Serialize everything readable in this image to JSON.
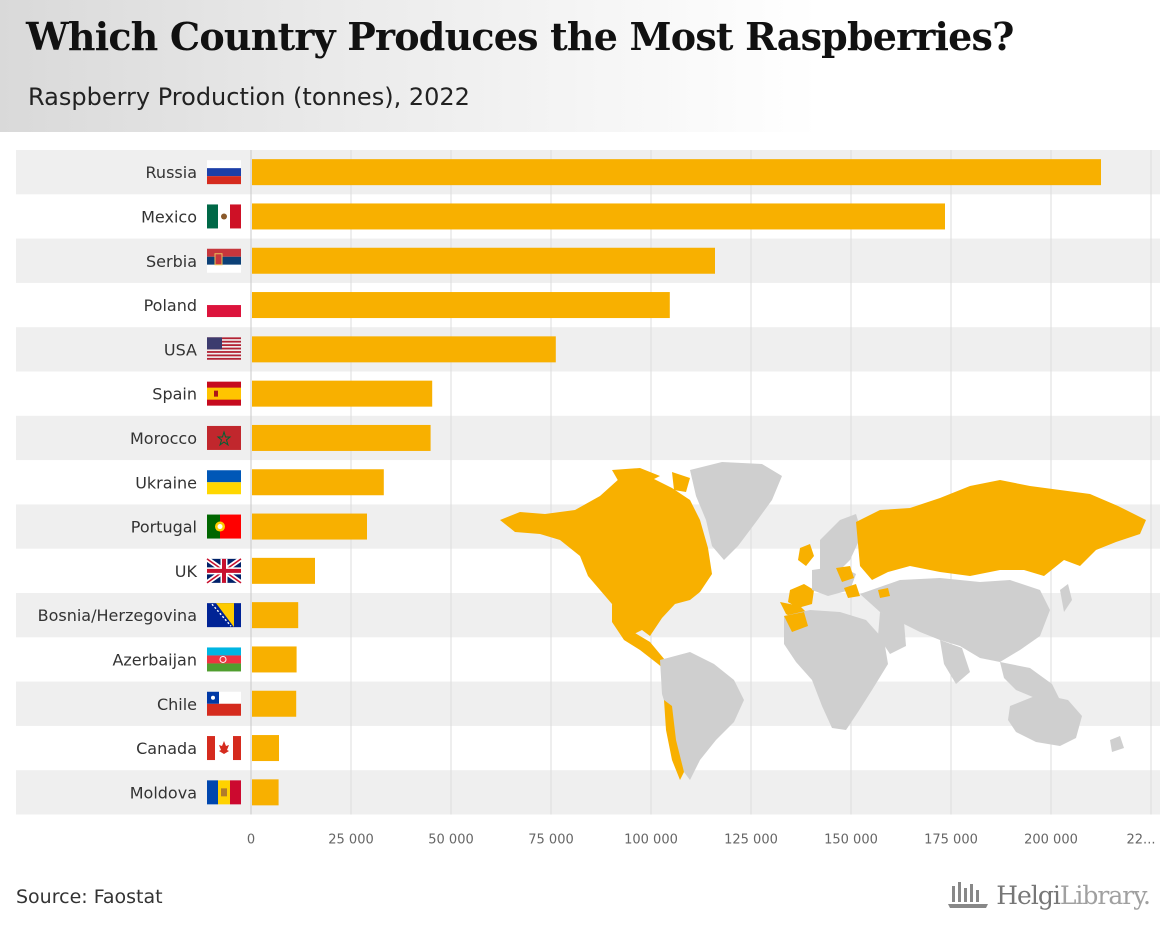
{
  "title": "Which Country Produces the Most Raspberries?",
  "subtitle": "Raspberry Production (tonnes), 2022",
  "source": "Source: Faostat",
  "logo": {
    "brand_main": "Helgi",
    "brand_light": "Library."
  },
  "colors": {
    "bar": "#f8b000",
    "map_highlight": "#f8b000",
    "map_other": "#cfcfcf",
    "band": "#efefef",
    "grid": "#dcdcdc"
  },
  "chart_data": {
    "type": "bar",
    "orientation": "horizontal",
    "title": "Which Country Produces the Most Raspberries?",
    "subtitle": "Raspberry Production (tonnes), 2022",
    "categories": [
      "Russia",
      "Mexico",
      "Serbia",
      "Poland",
      "USA",
      "Spain",
      "Morocco",
      "Ukraine",
      "Portugal",
      "UK",
      "Bosnia/Herzegovina",
      "Azerbaijan",
      "Chile",
      "Canada",
      "Moldova"
    ],
    "values": [
      212500,
      173500,
      116000,
      104700,
      76200,
      45300,
      44900,
      33200,
      29000,
      16000,
      11800,
      11400,
      11300,
      7000,
      6900
    ],
    "xlim": [
      0,
      225000
    ],
    "xticks": [
      0,
      25000,
      50000,
      75000,
      100000,
      125000,
      150000,
      175000,
      200000
    ],
    "xtick_labels": [
      "0",
      "25 000",
      "50 000",
      "75 000",
      "100 000",
      "125 000",
      "150 000",
      "175 000",
      "200 000"
    ],
    "last_tick_label": "22...",
    "grid": true,
    "legend": "none",
    "flags": [
      "flag-russia-icon",
      "flag-mexico-icon",
      "flag-serbia-icon",
      "flag-poland-icon",
      "flag-usa-icon",
      "flag-spain-icon",
      "flag-morocco-icon",
      "flag-ukraine-icon",
      "flag-portugal-icon",
      "flag-uk-icon",
      "flag-bosnia-icon",
      "flag-azerbaijan-icon",
      "flag-chile-icon",
      "flag-canada-icon",
      "flag-moldova-icon"
    ],
    "inset": "world-map-icon"
  }
}
